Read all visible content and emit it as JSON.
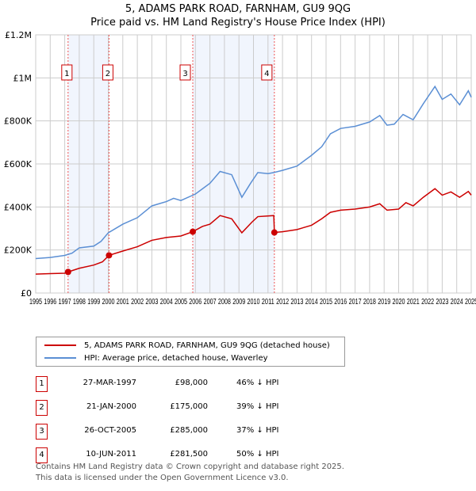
{
  "chart_data": {
    "type": "line",
    "title": "5, ADAMS PARK ROAD, FARNHAM, GU9 9QG",
    "subtitle": "Price paid vs. HM Land Registry's House Price Index (HPI)",
    "xlim": [
      1995,
      2025
    ],
    "ylim": [
      0,
      1200000
    ],
    "y_ticks": [
      {
        "v": 0,
        "label": "£0"
      },
      {
        "v": 200000,
        "label": "£200K"
      },
      {
        "v": 400000,
        "label": "£400K"
      },
      {
        "v": 600000,
        "label": "£600K"
      },
      {
        "v": 800000,
        "label": "£800K"
      },
      {
        "v": 1000000,
        "label": "£1M"
      },
      {
        "v": 1200000,
        "label": "£1.2M"
      }
    ],
    "x_ticks": [
      "1995",
      "1996",
      "1997",
      "1998",
      "1999",
      "2000",
      "2001",
      "2002",
      "2003",
      "2004",
      "2005",
      "2006",
      "2007",
      "2008",
      "2009",
      "2010",
      "2011",
      "2012",
      "2013",
      "2014",
      "2015",
      "2016",
      "2017",
      "2018",
      "2019",
      "2020",
      "2021",
      "2022",
      "2023",
      "2024",
      "2025"
    ],
    "grid": true,
    "shaded_periods": [
      [
        1997.23,
        2000.05
      ],
      [
        2005.82,
        2011.44
      ]
    ],
    "series": [
      {
        "name": "5, ADAMS PARK ROAD, FARNHAM, GU9 9QG (detached house)",
        "color": "#cc0000",
        "points": [
          [
            1995,
            88000
          ],
          [
            1996,
            90000
          ],
          [
            1997,
            92000
          ],
          [
            1997.23,
            98000
          ],
          [
            1998,
            115000
          ],
          [
            1999,
            130000
          ],
          [
            1999.6,
            145000
          ],
          [
            2000.05,
            175000
          ],
          [
            2001,
            195000
          ],
          [
            2002,
            215000
          ],
          [
            2003,
            245000
          ],
          [
            2004,
            258000
          ],
          [
            2005,
            265000
          ],
          [
            2005.82,
            285000
          ],
          [
            2006.5,
            310000
          ],
          [
            2007,
            320000
          ],
          [
            2007.7,
            360000
          ],
          [
            2008.5,
            345000
          ],
          [
            2009.2,
            280000
          ],
          [
            2009.9,
            330000
          ],
          [
            2010.3,
            355000
          ],
          [
            2011.4,
            360000
          ],
          [
            2011.44,
            281500
          ],
          [
            2012,
            285000
          ],
          [
            2013,
            295000
          ],
          [
            2014,
            315000
          ],
          [
            2014.7,
            345000
          ],
          [
            2015.3,
            375000
          ],
          [
            2016,
            385000
          ],
          [
            2017,
            390000
          ],
          [
            2018,
            400000
          ],
          [
            2018.7,
            415000
          ],
          [
            2019.2,
            385000
          ],
          [
            2020,
            390000
          ],
          [
            2020.5,
            420000
          ],
          [
            2021,
            405000
          ],
          [
            2021.7,
            445000
          ],
          [
            2022.5,
            485000
          ],
          [
            2023,
            455000
          ],
          [
            2023.6,
            470000
          ],
          [
            2024.2,
            445000
          ],
          [
            2024.8,
            472000
          ],
          [
            2025,
            455000
          ]
        ]
      },
      {
        "name": "HPI: Average price, detached house, Waverley",
        "color": "#5b8fd4",
        "points": [
          [
            1995,
            160000
          ],
          [
            1996,
            165000
          ],
          [
            1997,
            175000
          ],
          [
            1997.5,
            185000
          ],
          [
            1998,
            210000
          ],
          [
            1999,
            218000
          ],
          [
            1999.5,
            240000
          ],
          [
            2000,
            280000
          ],
          [
            2001,
            320000
          ],
          [
            2002,
            350000
          ],
          [
            2003,
            405000
          ],
          [
            2004,
            425000
          ],
          [
            2004.5,
            440000
          ],
          [
            2005,
            430000
          ],
          [
            2006,
            460000
          ],
          [
            2007,
            510000
          ],
          [
            2007.7,
            565000
          ],
          [
            2008.5,
            550000
          ],
          [
            2009.2,
            445000
          ],
          [
            2009.8,
            510000
          ],
          [
            2010.3,
            560000
          ],
          [
            2011,
            555000
          ],
          [
            2011.4,
            560000
          ],
          [
            2012,
            570000
          ],
          [
            2013,
            590000
          ],
          [
            2014,
            640000
          ],
          [
            2014.7,
            680000
          ],
          [
            2015.3,
            740000
          ],
          [
            2016,
            765000
          ],
          [
            2017,
            775000
          ],
          [
            2018,
            795000
          ],
          [
            2018.7,
            825000
          ],
          [
            2019.2,
            780000
          ],
          [
            2019.7,
            785000
          ],
          [
            2020.3,
            830000
          ],
          [
            2021,
            805000
          ],
          [
            2021.7,
            880000
          ],
          [
            2022.5,
            960000
          ],
          [
            2023,
            900000
          ],
          [
            2023.6,
            925000
          ],
          [
            2024.2,
            875000
          ],
          [
            2024.8,
            940000
          ],
          [
            2025,
            910000
          ]
        ]
      }
    ],
    "sales": [
      {
        "n": "1",
        "x": 1997.23,
        "price": 98000,
        "date": "27-MAR-1997",
        "price_label": "£98,000",
        "hpi": "46% ↓ HPI"
      },
      {
        "n": "2",
        "x": 2000.05,
        "price": 175000,
        "date": "21-JAN-2000",
        "price_label": "£175,000",
        "hpi": "39% ↓ HPI"
      },
      {
        "n": "3",
        "x": 2005.82,
        "price": 285000,
        "date": "26-OCT-2005",
        "price_label": "£285,000",
        "hpi": "37% ↓ HPI"
      },
      {
        "n": "4",
        "x": 2011.44,
        "price": 281500,
        "date": "10-JUN-2011",
        "price_label": "£281,500",
        "hpi": "50% ↓ HPI"
      }
    ]
  },
  "footer": [
    "Contains HM Land Registry data © Crown copyright and database right 2025.",
    "This data is licensed under the Open Government Licence v3.0."
  ]
}
